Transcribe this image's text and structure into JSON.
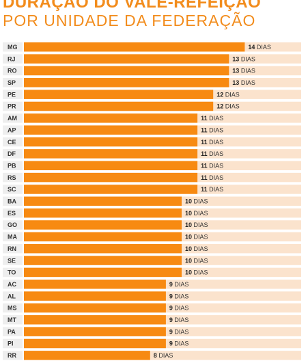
{
  "chart_data": {
    "type": "bar",
    "orientation": "horizontal",
    "title": "DURAÇÃO DO VALE-REFEIÇÃO",
    "subtitle": "POR UNIDADE DA FEDERAÇÃO",
    "unit": "DIAS",
    "categories": [
      "MG",
      "RJ",
      "RO",
      "SP",
      "PE",
      "PR",
      "AM",
      "AP",
      "CE",
      "DF",
      "PB",
      "RS",
      "SC",
      "BA",
      "ES",
      "GO",
      "MA",
      "RN",
      "SE",
      "TO",
      "AC",
      "AL",
      "MS",
      "MT",
      "PA",
      "PI",
      "RR"
    ],
    "values": [
      14,
      13,
      13,
      13,
      12,
      12,
      11,
      11,
      11,
      11,
      11,
      11,
      11,
      10,
      10,
      10,
      10,
      10,
      10,
      10,
      9,
      9,
      9,
      9,
      9,
      9,
      8
    ],
    "xlim": [
      0,
      17
    ],
    "grid": false,
    "colors": {
      "bar": "#f78a12",
      "track": "#fbe3cd",
      "label_box": "#eeeeee",
      "title": "#f28c1c"
    }
  }
}
